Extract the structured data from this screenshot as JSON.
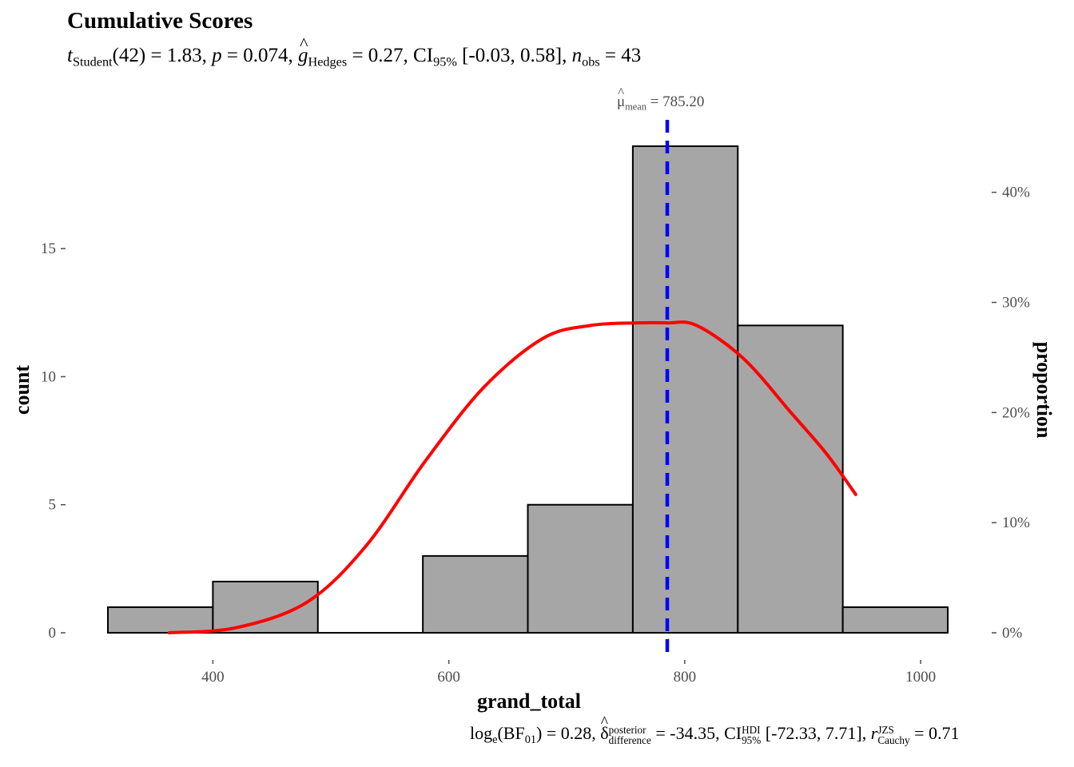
{
  "title": "Cumulative Scores",
  "subtitle": {
    "t_label": "t",
    "t_sub": "Student",
    "df": "(42) = 1.83, ",
    "p_label": "p",
    "p_value": " = 0.074, ",
    "g_label": "g",
    "g_sub": "Hedges",
    "g_value": " = 0.27, CI",
    "ci_sub": "95%",
    "ci_value": " [-0.03, 0.58], ",
    "n_label": "n",
    "n_sub": "obs",
    "n_value": " = 43"
  },
  "caption": {
    "log_label": "log",
    "log_sub": "e",
    "bf_open": "(BF",
    "bf_sub": "01",
    "bf_value": ") = 0.28, ",
    "delta_label": "δ",
    "delta_sup": "posterior",
    "delta_sub": "difference",
    "delta_value": " = -34.35, CI",
    "ci_sup": "HDI",
    "ci_sub": "95%",
    "ci_value": " [-72.33, 7.71], ",
    "r_label": "r",
    "r_sup": "JZS",
    "r_sub": "Cauchy",
    "r_value": " = 0.71"
  },
  "mean_label": {
    "symbol": "μ",
    "sub": "mean",
    "value": " = 785.20"
  },
  "colors": {
    "bar_fill": "#a6a6a6",
    "bar_stroke": "#000000",
    "density": "#ff0000",
    "mean_line": "#0000ff",
    "axis_text": "#4d4d4d"
  },
  "chart_data": {
    "type": "bar",
    "xlabel": "grand_total",
    "ylabel": "count",
    "y2label": "proportion",
    "xlim": [
      311,
      1025
    ],
    "ylim": [
      0,
      19
    ],
    "x_ticks": [
      400,
      600,
      800,
      1000
    ],
    "y_ticks": [
      0,
      5,
      10,
      15
    ],
    "y2_ticks": [
      "0%",
      "10%",
      "20%",
      "30%",
      "40%"
    ],
    "y2_tick_values": [
      0,
      0.1,
      0.2,
      0.3,
      0.4
    ],
    "n": 43,
    "bins": [
      {
        "x0": 311,
        "x1": 400,
        "count": 1
      },
      {
        "x0": 400,
        "x1": 489,
        "count": 2
      },
      {
        "x0": 489,
        "x1": 578,
        "count": 0
      },
      {
        "x0": 578,
        "x1": 667,
        "count": 3
      },
      {
        "x0": 667,
        "x1": 756,
        "count": 5
      },
      {
        "x0": 756,
        "x1": 845,
        "count": 19
      },
      {
        "x0": 845,
        "x1": 934,
        "count": 12
      },
      {
        "x0": 934,
        "x1": 1023,
        "count": 1
      }
    ],
    "mean": 785.2,
    "density_curve": {
      "x": [
        363,
        420,
        480,
        530,
        580,
        630,
        680,
        720,
        760,
        785,
        810,
        850,
        890,
        920,
        945
      ],
      "y": [
        0.0,
        0.2,
        1.2,
        3.4,
        6.7,
        9.6,
        11.5,
        12.0,
        12.1,
        12.1,
        12.0,
        10.7,
        8.6,
        7.0,
        5.4
      ]
    }
  }
}
